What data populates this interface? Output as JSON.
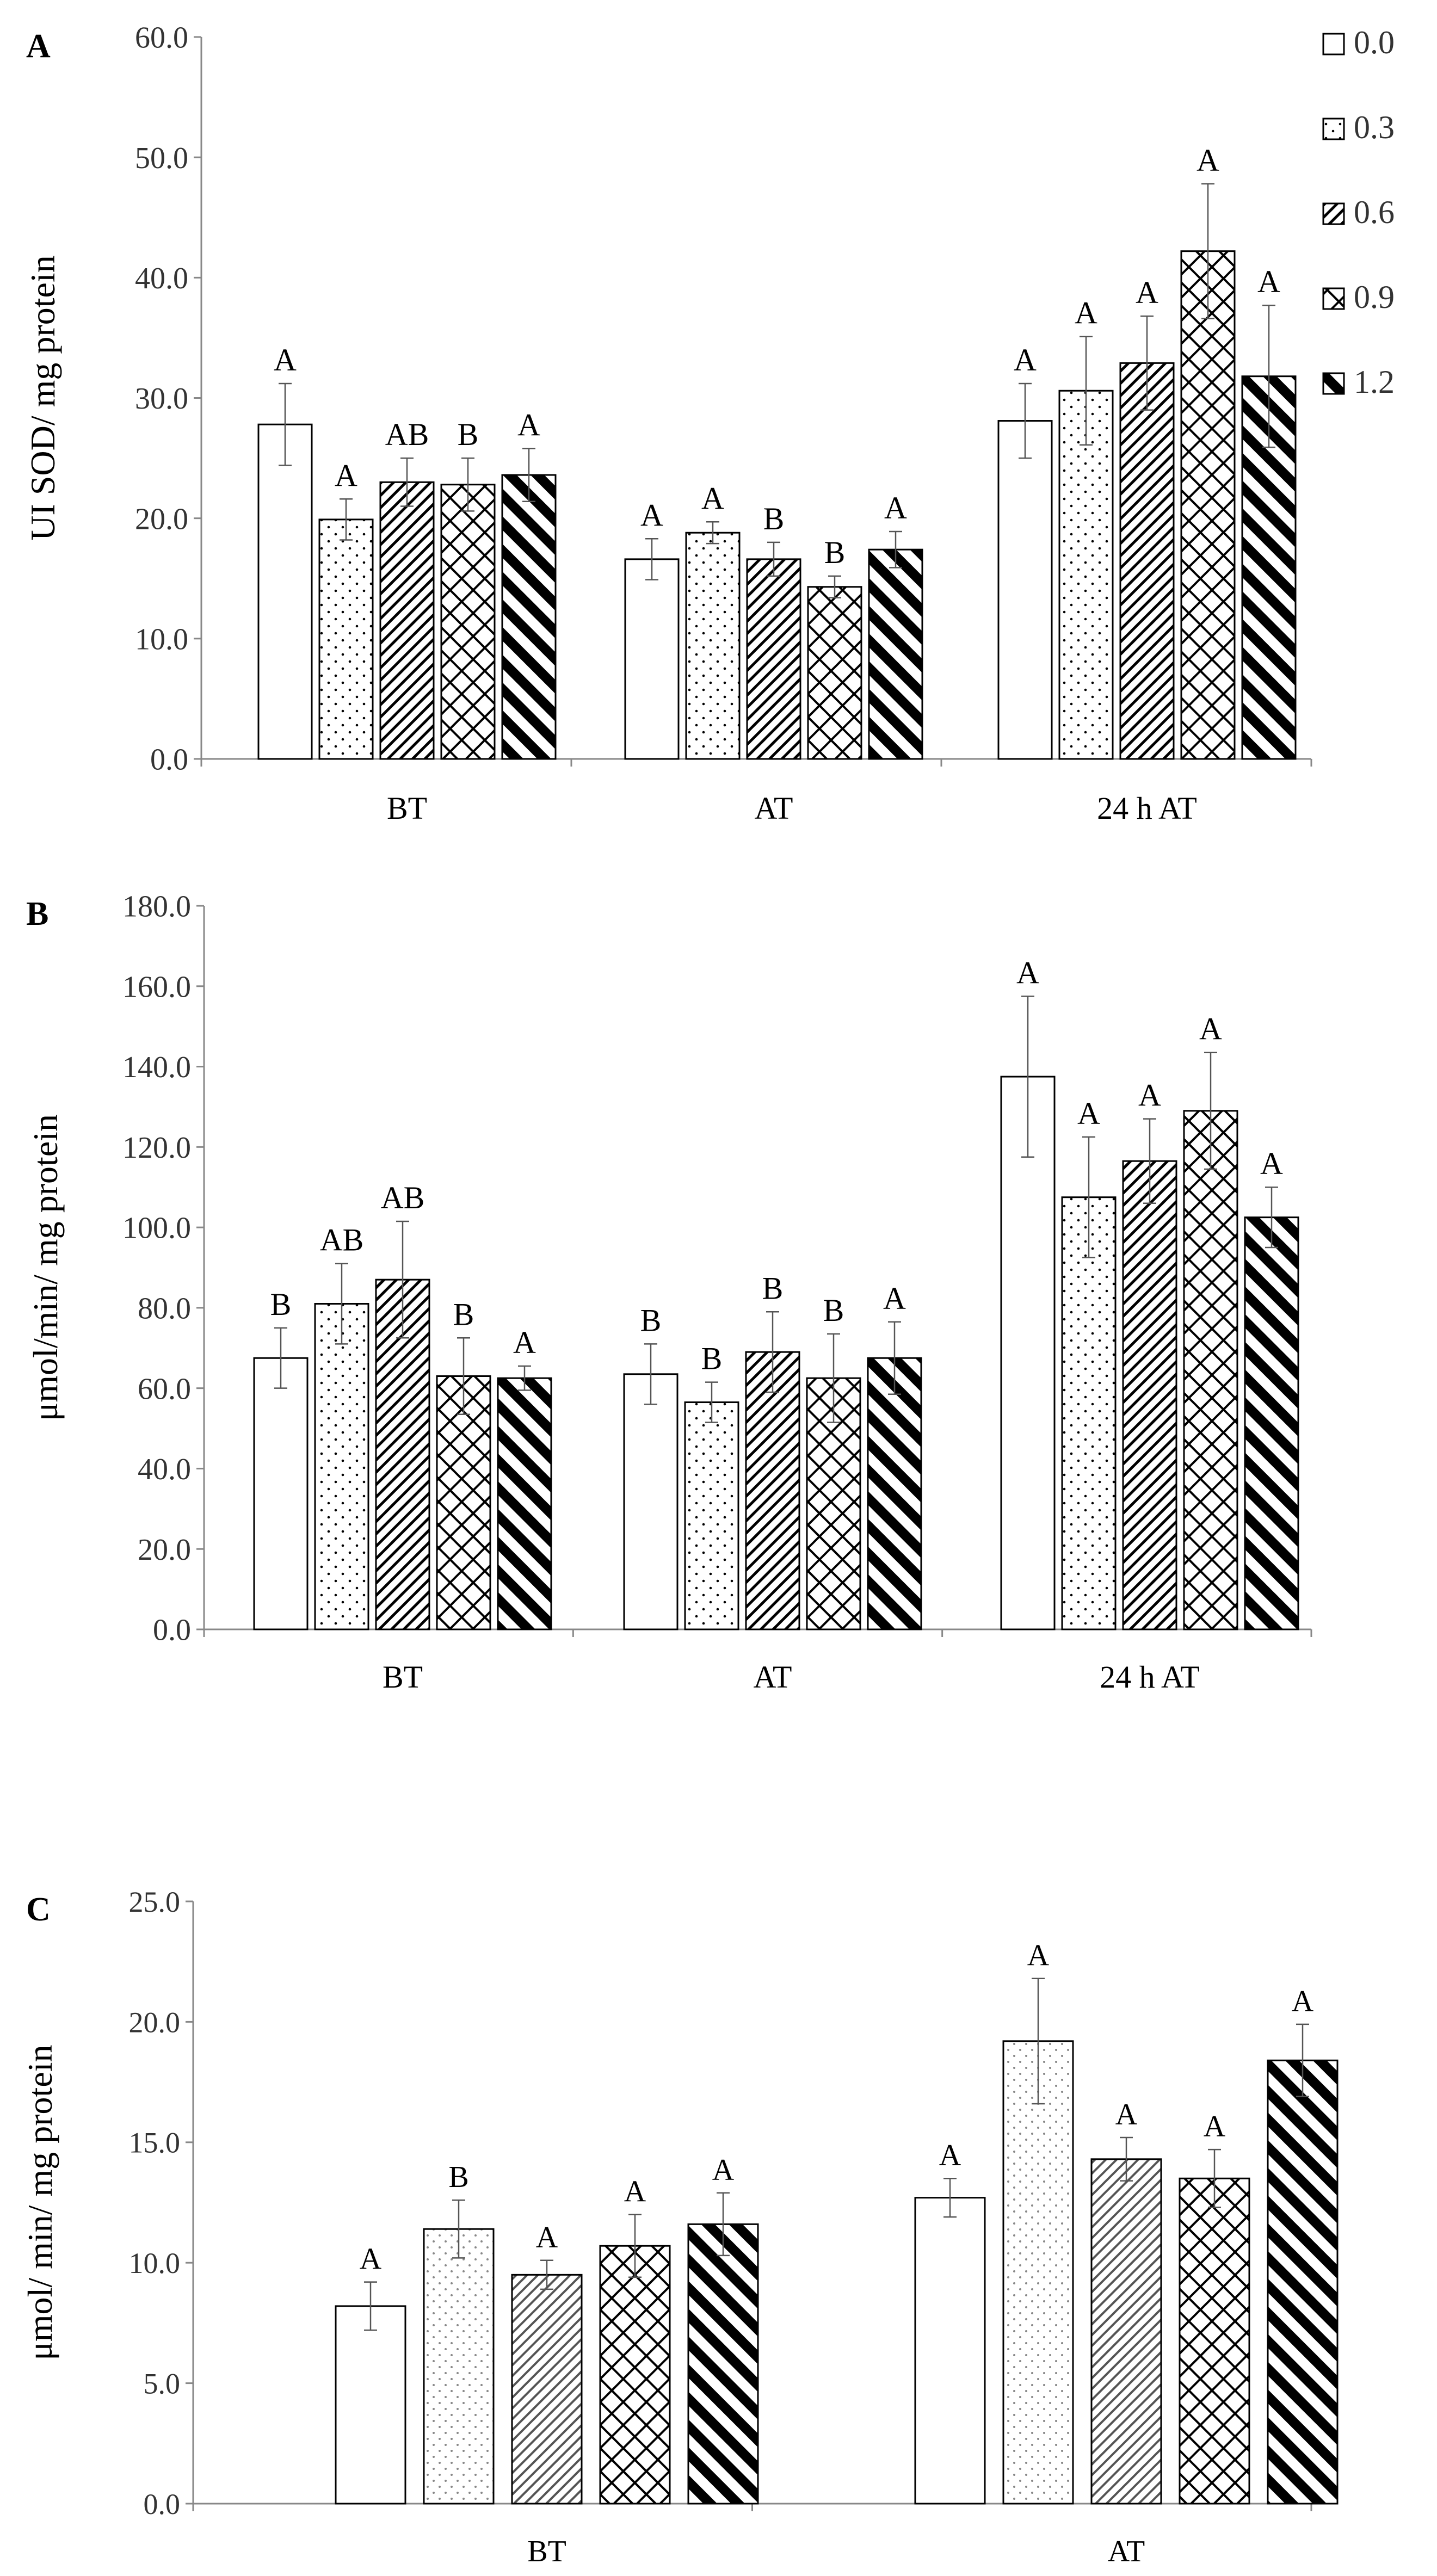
{
  "legend": {
    "title": "",
    "items": [
      "0.0",
      "0.3",
      "0.6",
      "0.9",
      "1.2"
    ]
  },
  "chart_data": [
    {
      "panel_label": "A",
      "type": "bar",
      "title": "",
      "xlabel": "",
      "ylabel": "UI SOD/ mg protein",
      "ylim": [
        0,
        60
      ],
      "ytick_step": 10,
      "ytick_labels": [
        "0.0",
        "10.0",
        "20.0",
        "30.0",
        "40.0",
        "50.0",
        "60.0"
      ],
      "categories": [
        "BT",
        "AT",
        "24 h AT"
      ],
      "series": [
        {
          "name": "0.0",
          "values": [
            27.8,
            16.6,
            28.1
          ],
          "errors": [
            3.4,
            1.7,
            3.1
          ],
          "letters": [
            "A",
            "A",
            "A"
          ]
        },
        {
          "name": "0.3",
          "values": [
            19.9,
            18.8,
            30.6
          ],
          "errors": [
            1.7,
            0.9,
            4.5
          ],
          "letters": [
            "A",
            "A",
            "A"
          ]
        },
        {
          "name": "0.6",
          "values": [
            23.0,
            16.6,
            32.9
          ],
          "errors": [
            2.0,
            1.4,
            3.9
          ],
          "letters": [
            "AB",
            "B",
            "A"
          ]
        },
        {
          "name": "0.9",
          "values": [
            22.8,
            14.3,
            42.2
          ],
          "errors": [
            2.2,
            0.9,
            5.6
          ],
          "letters": [
            "B",
            "B",
            "A"
          ]
        },
        {
          "name": "1.2",
          "values": [
            23.6,
            17.4,
            31.8
          ],
          "errors": [
            2.2,
            1.5,
            5.9
          ],
          "letters": [
            "A",
            "A",
            "A"
          ]
        }
      ]
    },
    {
      "panel_label": "B",
      "type": "bar",
      "title": "",
      "xlabel": "",
      "ylabel": "μmol/min/ mg protein",
      "ylim": [
        0,
        180
      ],
      "ytick_step": 20,
      "ytick_labels": [
        "0.0",
        "20.0",
        "40.0",
        "60.0",
        "80.0",
        "100.0",
        "120.0",
        "140.0",
        "160.0",
        "180.0"
      ],
      "categories": [
        "BT",
        "AT",
        "24 h AT"
      ],
      "series": [
        {
          "name": "0.0",
          "values": [
            67.5,
            63.5,
            137.5
          ],
          "errors": [
            7.5,
            7.5,
            20
          ],
          "letters": [
            "B",
            "B",
            "A"
          ]
        },
        {
          "name": "0.3",
          "values": [
            81.0,
            56.5,
            107.5
          ],
          "errors": [
            10,
            5,
            15
          ],
          "letters": [
            "AB",
            "B",
            "A"
          ]
        },
        {
          "name": "0.6",
          "values": [
            87.0,
            69.0,
            116.5
          ],
          "errors": [
            14.5,
            10,
            10.5
          ],
          "letters": [
            "AB",
            "B",
            "A"
          ]
        },
        {
          "name": "0.9",
          "values": [
            63.0,
            62.5,
            129.0
          ],
          "errors": [
            9.5,
            11,
            14.5
          ],
          "letters": [
            "B",
            "B",
            "A"
          ]
        },
        {
          "name": "1.2",
          "values": [
            62.5,
            67.5,
            102.5
          ],
          "errors": [
            3,
            9,
            7.5
          ],
          "letters": [
            "A",
            "A",
            "A"
          ]
        }
      ]
    },
    {
      "panel_label": "C",
      "type": "bar",
      "title": "",
      "xlabel": "",
      "ylabel": "μmol/ min/ mg protein",
      "ylim": [
        0,
        25
      ],
      "ytick_step": 5,
      "ytick_labels": [
        "0.0",
        "5.0",
        "10.0",
        "15.0",
        "20.0",
        "25.0"
      ],
      "categories": [
        "BT",
        "AT"
      ],
      "series": [
        {
          "name": "0.0",
          "values": [
            8.2,
            12.7
          ],
          "errors": [
            1.0,
            0.8
          ],
          "letters": [
            "A",
            "A"
          ]
        },
        {
          "name": "0.3",
          "values": [
            11.4,
            19.2
          ],
          "errors": [
            1.2,
            2.6
          ],
          "letters": [
            "B",
            "A"
          ]
        },
        {
          "name": "0.6",
          "values": [
            9.5,
            14.3
          ],
          "errors": [
            0.6,
            0.9
          ],
          "letters": [
            "A",
            "A"
          ]
        },
        {
          "name": "0.9",
          "values": [
            10.7,
            13.5
          ],
          "errors": [
            1.3,
            1.2
          ],
          "letters": [
            "A",
            "A"
          ]
        },
        {
          "name": "1.2",
          "values": [
            11.6,
            18.4
          ],
          "errors": [
            1.3,
            1.5
          ],
          "letters": [
            "A",
            "A"
          ]
        }
      ]
    }
  ]
}
